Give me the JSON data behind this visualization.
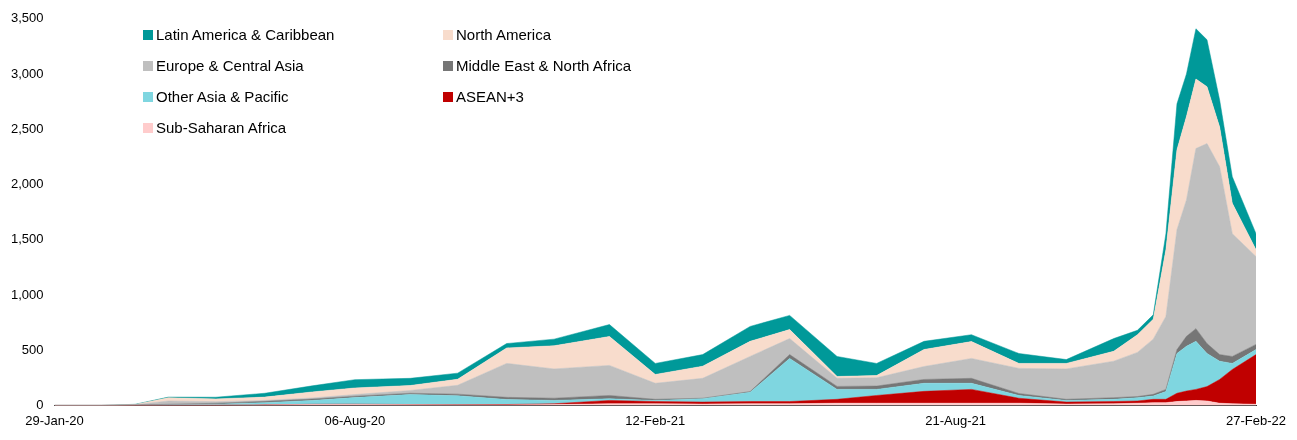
{
  "chart_data": {
    "type": "area",
    "stacked": true,
    "legend": "top left",
    "grid": false,
    "x": [
      "2020-01-29",
      "2020-02-28",
      "2020-03-20",
      "2020-04-10",
      "2020-05-10",
      "2020-06-10",
      "2020-07-10",
      "2020-08-06",
      "2020-09-10",
      "2020-10-10",
      "2020-11-10",
      "2020-12-10",
      "2021-01-14",
      "2021-02-12",
      "2021-03-14",
      "2021-04-13",
      "2021-05-08",
      "2021-06-07",
      "2021-07-02",
      "2021-08-01",
      "2021-08-31",
      "2021-09-30",
      "2021-10-30",
      "2021-11-29",
      "2021-12-14",
      "2021-12-24",
      "2022-01-01",
      "2022-01-08",
      "2022-01-14",
      "2022-01-20",
      "2022-01-27",
      "2022-02-04",
      "2022-02-12",
      "2022-02-27"
    ],
    "xlim": [
      "2020-01-29",
      "2022-02-27"
    ],
    "xticks": [
      {
        "value": "2020-01-29",
        "label": "29-Jan-20"
      },
      {
        "value": "2020-08-06",
        "label": "06-Aug-20"
      },
      {
        "value": "2021-02-12",
        "label": "12-Feb-21"
      },
      {
        "value": "2021-08-21",
        "label": "21-Aug-21"
      },
      {
        "value": "2022-02-27",
        "label": "27-Feb-22"
      }
    ],
    "ylim": [
      0,
      3500
    ],
    "yticks": [
      0,
      500,
      {
        "value": 1000,
        "label": "1,000"
      },
      {
        "value": 1500,
        "label": "1,500"
      },
      {
        "value": 2000,
        "label": "2,000"
      },
      {
        "value": 2500,
        "label": "2,500"
      },
      {
        "value": 3000,
        "label": "3,000"
      },
      {
        "value": 3500,
        "label": "3,500"
      }
    ],
    "series": [
      {
        "name": "Sub-Saharan Africa",
        "color": "#ffcccc",
        "values": [
          0,
          0,
          0,
          0,
          2,
          4,
          8,
          8,
          5,
          4,
          4,
          8,
          15,
          15,
          12,
          15,
          15,
          20,
          20,
          20,
          20,
          20,
          12,
          15,
          20,
          25,
          25,
          35,
          40,
          45,
          40,
          20,
          15,
          10
        ]
      },
      {
        "name": "ASEAN+3",
        "color": "#c00000",
        "values": [
          0,
          0,
          1,
          2,
          1,
          1,
          2,
          3,
          3,
          3,
          4,
          7,
          30,
          20,
          18,
          20,
          20,
          35,
          70,
          107,
          125,
          45,
          18,
          20,
          20,
          30,
          30,
          75,
          90,
          100,
          130,
          215,
          310,
          450
        ]
      },
      {
        "name": "Other Asia & Pacific",
        "color": "#7fd6e0",
        "values": [
          0,
          0,
          1,
          3,
          8,
          20,
          35,
          60,
          90,
          80,
          45,
          30,
          15,
          10,
          30,
          83,
          390,
          90,
          55,
          73,
          55,
          25,
          15,
          20,
          30,
          30,
          70,
          360,
          405,
          435,
          300,
          165,
          55,
          45
        ]
      },
      {
        "name": "Middle East & North Africa",
        "color": "#767676",
        "values": [
          0,
          0,
          1,
          5,
          8,
          12,
          12,
          12,
          12,
          15,
          20,
          20,
          30,
          10,
          5,
          7,
          35,
          27,
          30,
          35,
          45,
          18,
          10,
          15,
          10,
          15,
          20,
          35,
          90,
          115,
          90,
          60,
          63,
          47
        ]
      },
      {
        "name": "Europe & Central Asia",
        "color": "#bfbfbf",
        "values": [
          0,
          0,
          3,
          30,
          15,
          8,
          10,
          15,
          25,
          80,
          307,
          265,
          272,
          145,
          180,
          318,
          145,
          73,
          75,
          117,
          180,
          227,
          275,
          330,
          400,
          500,
          660,
          1085,
          1235,
          1630,
          1810,
          1700,
          1112,
          795
        ]
      },
      {
        "name": "North America",
        "color": "#f8dccc",
        "values": [
          0,
          0,
          2,
          30,
          25,
          30,
          55,
          60,
          45,
          55,
          140,
          210,
          262,
          80,
          110,
          137,
          82,
          17,
          20,
          154,
          153,
          45,
          50,
          90,
          160,
          180,
          605,
          725,
          755,
          630,
          515,
          360,
          275,
          63
        ]
      },
      {
        "name": "Latin America & Caribbean",
        "color": "#009999",
        "values": [
          0,
          0,
          2,
          5,
          15,
          35,
          55,
          75,
          65,
          55,
          40,
          60,
          108,
          100,
          105,
          135,
          128,
          181,
          110,
          74,
          62,
          90,
          35,
          115,
          40,
          40,
          145,
          415,
          385,
          455,
          425,
          245,
          240,
          145
        ]
      }
    ]
  }
}
